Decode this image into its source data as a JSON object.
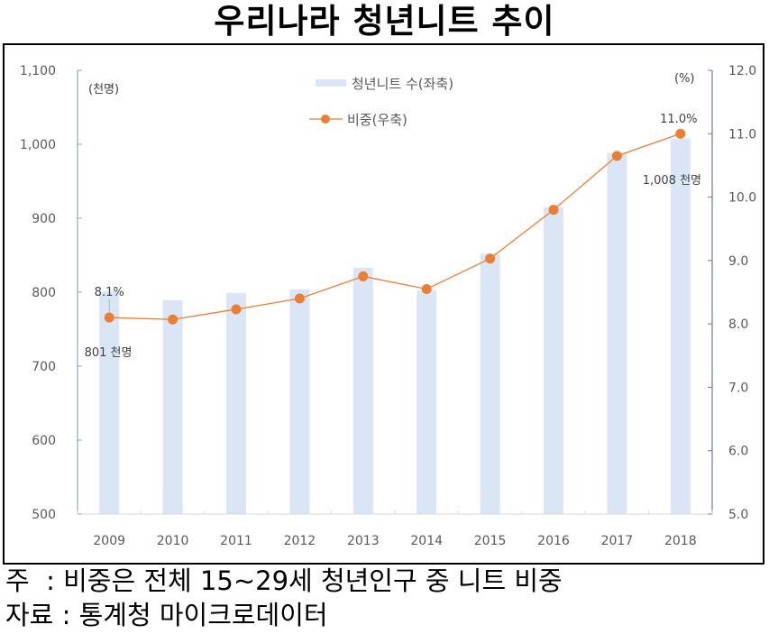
{
  "title": "우리나라 청년니트 추이",
  "notes": {
    "note_label": "주",
    "note_text": "  : 비중은 전체 15~29세 청년인구 중 니트 비중",
    "source_label": "자료",
    "source_text": " : 통계청 마이크로데이터"
  },
  "colors": {
    "bar": "#DAE6F6",
    "line": "#ED7D31",
    "axis": "#8EA9C1",
    "text": "#595959"
  },
  "chart_data": {
    "type": "bar+line",
    "title": "우리나라 청년니트 추이",
    "categories": [
      "2009",
      "2010",
      "2011",
      "2012",
      "2013",
      "2014",
      "2015",
      "2016",
      "2017",
      "2018"
    ],
    "series": [
      {
        "name": "청년니트 수(좌축)",
        "type": "bar",
        "axis": "left",
        "values": [
          801,
          789,
          799,
          804,
          833,
          803,
          852,
          915,
          988,
          1008
        ]
      },
      {
        "name": "비중(우축)",
        "type": "line",
        "axis": "right",
        "values": [
          8.1,
          8.07,
          8.23,
          8.4,
          8.75,
          8.55,
          9.03,
          9.8,
          10.65,
          11.0
        ]
      }
    ],
    "left_axis": {
      "unit_label": "(천명)",
      "ylim": [
        500,
        1100
      ],
      "ticks": [
        "500",
        "600",
        "700",
        "800",
        "900",
        "1,000",
        "1,100"
      ],
      "tick_values": [
        500,
        600,
        700,
        800,
        900,
        1000,
        1100
      ]
    },
    "right_axis": {
      "unit_label": "(%)",
      "ylim": [
        5.0,
        12.0
      ],
      "ticks": [
        "5.0",
        "6.0",
        "7.0",
        "8.0",
        "9.0",
        "10.0",
        "11.0",
        "12.0"
      ],
      "tick_values": [
        5,
        6,
        7,
        8,
        9,
        10,
        11,
        12
      ]
    },
    "annotations": [
      {
        "text": "8.1%",
        "category": "2009",
        "series": "비중(우축)"
      },
      {
        "text": "801 천명",
        "category": "2009",
        "series": "청년니트 수(좌축)"
      },
      {
        "text": "11.0%",
        "category": "2018",
        "series": "비중(우축)"
      },
      {
        "text": "1,008 천명",
        "category": "2018",
        "series": "청년니트 수(좌축)"
      }
    ],
    "legend": {
      "placement": "top-center",
      "entries": [
        "청년니트 수(좌축)",
        "비중(우축)"
      ]
    },
    "grid": false
  }
}
